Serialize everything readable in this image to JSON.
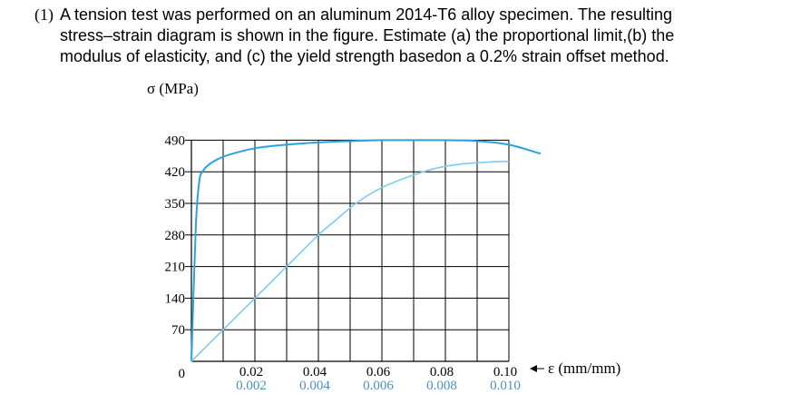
{
  "problem": {
    "number": "(1)",
    "lines": [
      "A tension test was performed on an aluminum 2014-T6 alloy specimen. The resulting",
      "stress–strain diagram is shown in the figure. Estimate (a) the proportional limit,(b) the",
      "modulus of elasticity, and (c) the yield strength basedon a 0.2% strain offset method."
    ]
  },
  "chart_data": {
    "type": "line",
    "ylabel": "σ (MPa)",
    "xlabel": "ε (mm/mm)",
    "ylim": [
      0,
      490
    ],
    "y_ticks": [
      "0",
      "70",
      "140",
      "210",
      "280",
      "350",
      "420",
      "490"
    ],
    "x_ticks_upper": [
      "0.02",
      "0.04",
      "0.06",
      "0.08",
      "0.10"
    ],
    "x_ticks_lower": [
      "0.002",
      "0.004",
      "0.006",
      "0.008",
      "0.010"
    ],
    "grid": true,
    "colors": {
      "upper_curve": "#29a3e0",
      "lower_curve": "#7ecbf0",
      "grid": "#000000",
      "upper_tick_text": "#000000",
      "lower_tick_text": "#4a90c2"
    },
    "series": [
      {
        "scale": "upper",
        "x": [
          0,
          0.0014,
          0.0025,
          0.0035,
          0.005,
          0.008,
          0.012,
          0.02,
          0.03,
          0.04,
          0.05,
          0.06,
          0.07,
          0.08,
          0.09,
          0.1,
          0.11
        ],
        "values": [
          0,
          300,
          400,
          420,
          433,
          447,
          458,
          472,
          480,
          485,
          488,
          490,
          490,
          490,
          488,
          480,
          460
        ]
      },
      {
        "scale": "lower",
        "x": [
          0,
          0.001,
          0.002,
          0.003,
          0.004,
          0.0045,
          0.005,
          0.0055,
          0.006,
          0.0065,
          0.007,
          0.0075,
          0.008,
          0.0085,
          0.009,
          0.0095,
          0.01
        ],
        "values": [
          0,
          70,
          140,
          210,
          280,
          310,
          340,
          365,
          385,
          400,
          413,
          424,
          432,
          437,
          440,
          442,
          443
        ]
      }
    ]
  }
}
